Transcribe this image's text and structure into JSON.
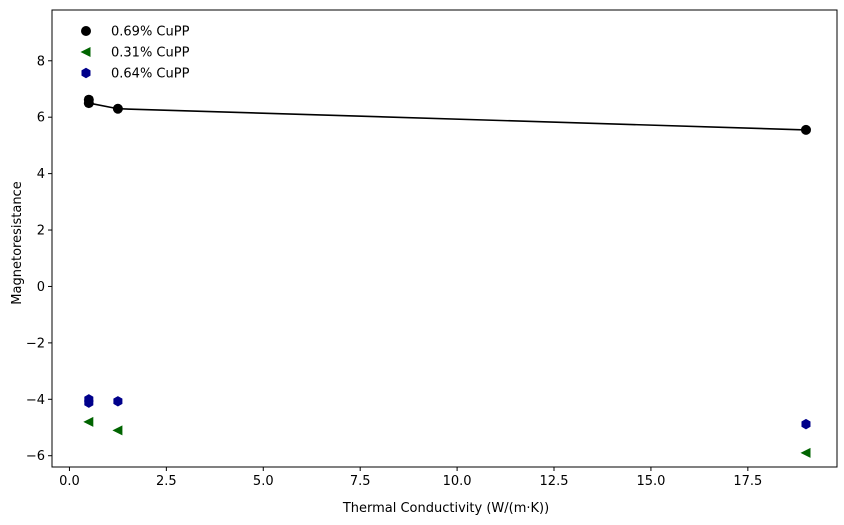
{
  "chart_data": {
    "type": "scatter",
    "title": "",
    "xlabel": "Thermal Conductivity (W/(m·K))",
    "ylabel": "Magnetoresistance",
    "xlim": [
      -0.45,
      19.8
    ],
    "ylim": [
      -6.4,
      9.8
    ],
    "xticks": [
      0.0,
      2.5,
      5.0,
      7.5,
      10.0,
      12.5,
      15.0,
      17.5
    ],
    "xtick_labels": [
      "0.0",
      "2.5",
      "5.0",
      "7.5",
      "10.0",
      "12.5",
      "15.0",
      "17.5"
    ],
    "yticks": [
      -6,
      -4,
      -2,
      0,
      2,
      4,
      6,
      8
    ],
    "ytick_labels": [
      "−6",
      "−4",
      "−2",
      "0",
      "2",
      "4",
      "6",
      "8"
    ],
    "grid": false,
    "legend_position": "top-left",
    "series": [
      {
        "name": "0.69% CuPP",
        "marker": "circle",
        "color": "#000000",
        "connected": true,
        "points": [
          [
            0.5,
            6.62
          ],
          [
            0.5,
            6.5
          ],
          [
            1.25,
            6.3
          ],
          [
            19.0,
            5.55
          ]
        ]
      },
      {
        "name": "0.31% CuPP",
        "marker": "triangle-left",
        "color": "#006400",
        "connected": false,
        "points": [
          [
            0.5,
            -4.8
          ],
          [
            1.25,
            -5.1
          ],
          [
            19.0,
            -5.9
          ]
        ]
      },
      {
        "name": "0.64% CuPP",
        "marker": "hexagon",
        "color": "#00008b",
        "connected": false,
        "points": [
          [
            0.5,
            -4.0
          ],
          [
            0.5,
            -4.12
          ],
          [
            1.25,
            -4.07
          ],
          [
            19.0,
            -4.88
          ]
        ]
      }
    ]
  }
}
